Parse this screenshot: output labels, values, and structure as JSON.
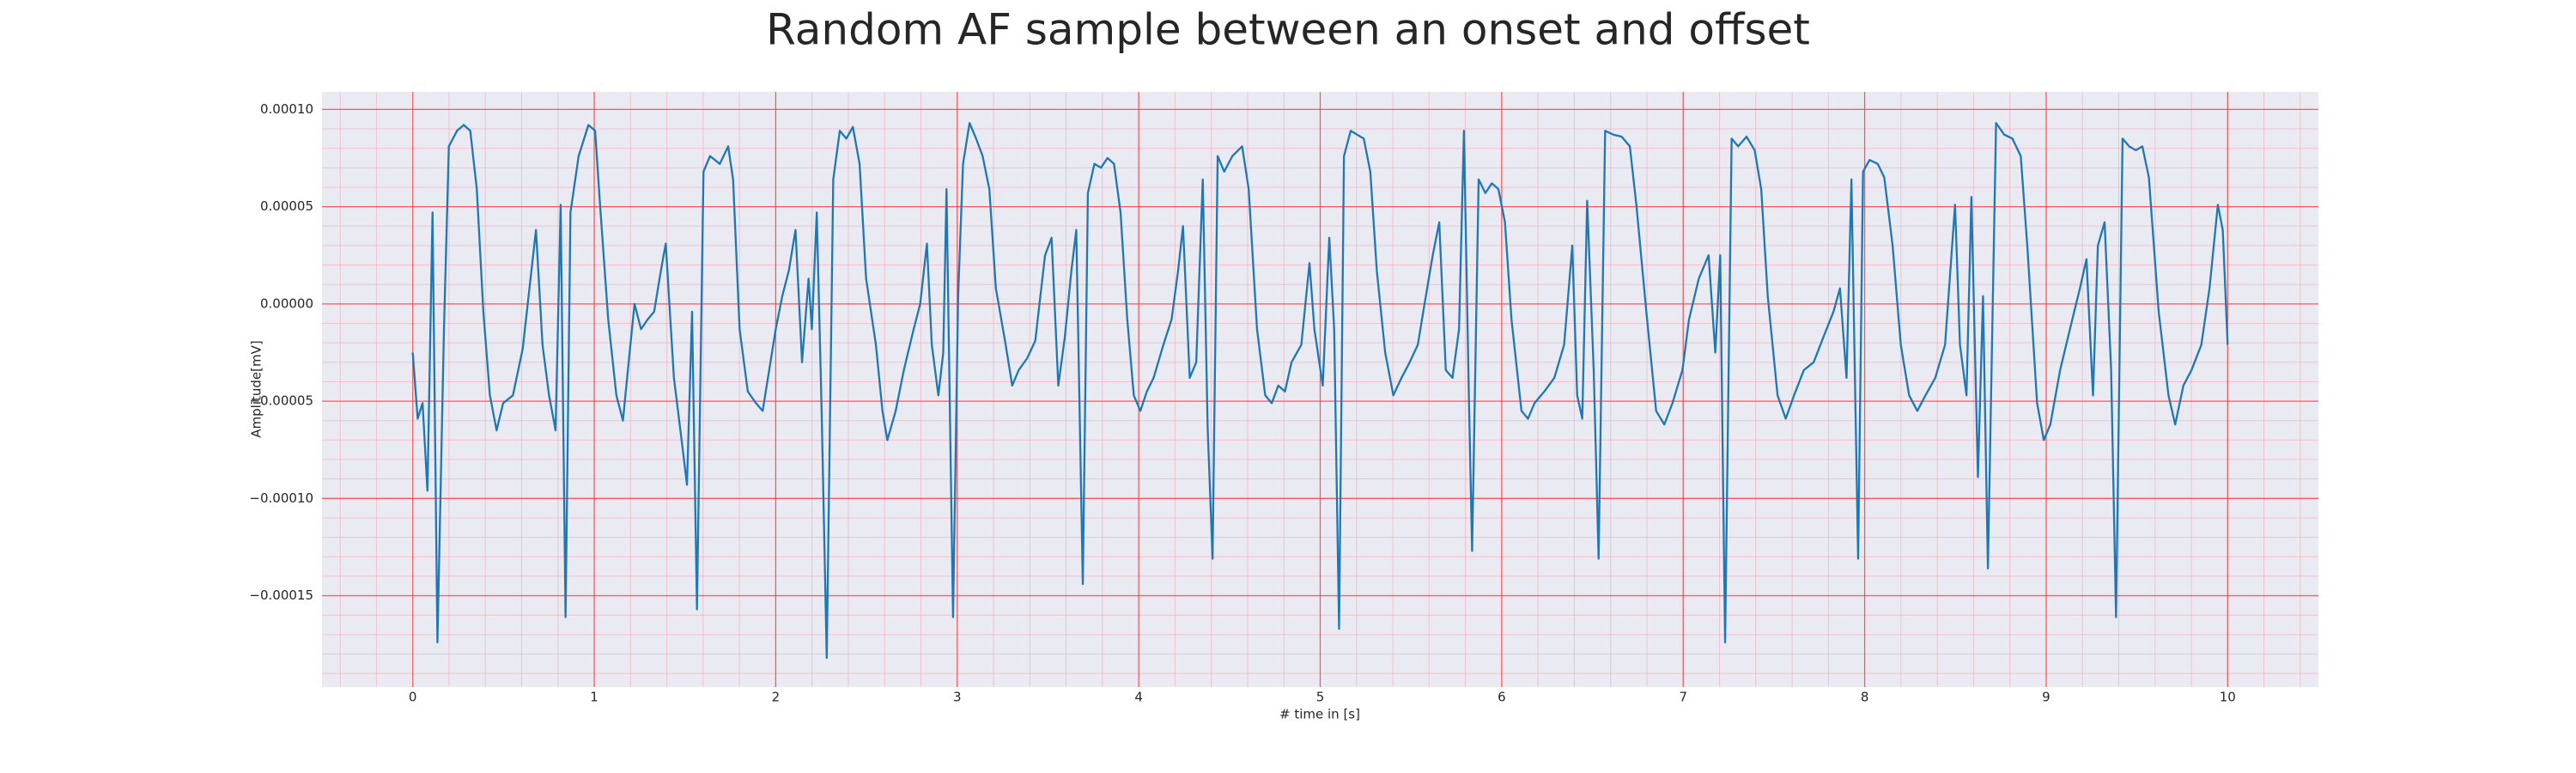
{
  "chart_data": {
    "type": "line",
    "title": "Random AF sample between an onset and offset",
    "xlabel": "# time in [s]",
    "ylabel": "Amplitude[mV]",
    "grid": true,
    "xlim": [
      -0.5,
      10.5
    ],
    "ylim": [
      -0.000197,
      0.000109
    ],
    "xticks": [
      0,
      1,
      2,
      3,
      4,
      5,
      6,
      7,
      8,
      9,
      10
    ],
    "yticks": [
      {
        "value": -0.00015,
        "label": "−0.00015"
      },
      {
        "value": -0.0001,
        "label": "−0.00010"
      },
      {
        "value": -5e-05,
        "label": "−0.00005"
      },
      {
        "value": 0,
        "label": "0.00000"
      },
      {
        "value": 5e-05,
        "label": "0.00005"
      },
      {
        "value": 0.0001,
        "label": "0.00010"
      }
    ],
    "series": [
      {
        "color": "#1f77b4",
        "x": [
          0,
          0.027,
          0.054,
          0.081,
          0.109,
          0.136,
          0.172,
          0.199,
          0.244,
          0.281,
          0.317,
          0.353,
          0.389,
          0.425,
          0.462,
          0.498,
          0.552,
          0.606,
          0.643,
          0.679,
          0.715,
          0.751,
          0.787,
          0.815,
          0.842,
          0.869,
          0.914,
          0.968,
          1.005,
          1.032,
          1.077,
          1.122,
          1.158,
          1.195,
          1.222,
          1.258,
          1.294,
          1.33,
          1.367,
          1.394,
          1.439,
          1.484,
          1.511,
          1.539,
          1.566,
          1.602,
          1.638,
          1.692,
          1.738,
          1.765,
          1.801,
          1.846,
          1.891,
          1.928,
          1.964,
          2.0,
          2.036,
          2.072,
          2.109,
          2.145,
          2.181,
          2.199,
          2.226,
          2.253,
          2.281,
          2.317,
          2.353,
          2.389,
          2.425,
          2.462,
          2.498,
          2.552,
          2.588,
          2.615,
          2.661,
          2.706,
          2.76,
          2.796,
          2.833,
          2.86,
          2.896,
          2.923,
          2.941,
          2.977,
          3.005,
          3.032,
          3.068,
          3.104,
          3.14,
          3.177,
          3.213,
          3.267,
          3.303,
          3.339,
          3.385,
          3.43,
          3.484,
          3.52,
          3.557,
          3.593,
          3.629,
          3.656,
          3.692,
          3.72,
          3.756,
          3.792,
          3.828,
          3.864,
          3.9,
          3.937,
          3.973,
          4.009,
          4.045,
          4.082,
          4.136,
          4.181,
          4.217,
          4.244,
          4.281,
          4.317,
          4.353,
          4.38,
          4.407,
          4.435,
          4.471,
          4.516,
          4.57,
          4.606,
          4.652,
          4.697,
          4.733,
          4.769,
          4.806,
          4.842,
          4.896,
          4.941,
          4.968,
          5.014,
          5.05,
          5.077,
          5.104,
          5.131,
          5.168,
          5.204,
          5.24,
          5.276,
          5.312,
          5.358,
          5.403,
          5.448,
          5.493,
          5.538,
          5.575,
          5.62,
          5.656,
          5.692,
          5.729,
          5.765,
          5.792,
          5.819,
          5.837,
          5.873,
          5.91,
          5.946,
          5.982,
          6.018,
          6.054,
          6.109,
          6.145,
          6.181,
          6.235,
          6.29,
          6.344,
          6.389,
          6.416,
          6.444,
          6.471,
          6.507,
          6.534,
          6.57,
          6.616,
          6.661,
          6.706,
          6.742,
          6.797,
          6.851,
          6.896,
          6.941,
          6.996,
          7.032,
          7.086,
          7.14,
          7.177,
          7.204,
          7.231,
          7.267,
          7.303,
          7.349,
          7.394,
          7.43,
          7.466,
          7.52,
          7.565,
          7.611,
          7.665,
          7.719,
          7.773,
          7.828,
          7.864,
          7.9,
          7.927,
          7.964,
          7.991,
          8.027,
          8.072,
          8.108,
          8.154,
          8.199,
          8.245,
          8.29,
          8.335,
          8.389,
          8.443,
          8.498,
          8.525,
          8.561,
          8.588,
          8.624,
          8.652,
          8.679,
          8.724,
          8.769,
          8.814,
          8.86,
          8.896,
          8.95,
          8.987,
          9.023,
          9.077,
          9.131,
          9.186,
          9.222,
          9.258,
          9.285,
          9.322,
          9.358,
          9.385,
          9.421,
          9.457,
          9.494,
          9.53,
          9.566,
          9.62,
          9.674,
          9.711,
          9.756,
          9.801,
          9.855,
          9.9,
          9.946,
          9.973,
          10.0
        ],
        "values": [
          -2.5e-05,
          -5.9e-05,
          -5.1e-05,
          -9.6e-05,
          4.7e-05,
          -0.000174,
          -1.3e-05,
          8.1e-05,
          8.9e-05,
          9.2e-05,
          8.9e-05,
          5.9e-05,
          -4e-06,
          -4.7e-05,
          -6.5e-05,
          -5.1e-05,
          -4.7e-05,
          -2.3e-05,
          8e-06,
          3.8e-05,
          -2.1e-05,
          -4.7e-05,
          -6.5e-05,
          5.1e-05,
          -0.000161,
          4.7e-05,
          7.6e-05,
          9.2e-05,
          8.9e-05,
          5.1e-05,
          -8e-06,
          -4.7e-05,
          -6e-05,
          -2.5e-05,
          0,
          -1.3e-05,
          -8e-06,
          -4e-06,
          1.7e-05,
          3.1e-05,
          -3.8e-05,
          -7.2e-05,
          -9.3e-05,
          -4e-06,
          -0.000157,
          6.8e-05,
          7.6e-05,
          7.2e-05,
          8.1e-05,
          6.4e-05,
          -1.3e-05,
          -4.5e-05,
          -5.1e-05,
          -5.5e-05,
          -3.4e-05,
          -1.3e-05,
          4e-06,
          1.7e-05,
          3.8e-05,
          -3e-05,
          1.3e-05,
          -1.3e-05,
          4.7e-05,
          -5.5e-05,
          -0.000182,
          6.4e-05,
          8.9e-05,
          8.5e-05,
          9.1e-05,
          7.2e-05,
          1.3e-05,
          -2.1e-05,
          -5.5e-05,
          -7e-05,
          -5.5e-05,
          -3.4e-05,
          -1.3e-05,
          0,
          3.1e-05,
          -2.1e-05,
          -4.7e-05,
          -2.5e-05,
          5.9e-05,
          -0.000161,
          4e-06,
          7.2e-05,
          9.3e-05,
          8.5e-05,
          7.6e-05,
          5.9e-05,
          8e-06,
          -2.1e-05,
          -4.2e-05,
          -3.4e-05,
          -2.8e-05,
          -1.9e-05,
          2.5e-05,
          3.4e-05,
          -4.2e-05,
          -1.7e-05,
          1.7e-05,
          3.8e-05,
          -0.000144,
          5.7e-05,
          7.2e-05,
          7e-05,
          7.5e-05,
          7.2e-05,
          4.7e-05,
          -8e-06,
          -4.7e-05,
          -5.5e-05,
          -4.5e-05,
          -3.8e-05,
          -2.1e-05,
          -8e-06,
          1.7e-05,
          4e-05,
          -3.8e-05,
          -3e-05,
          6.4e-05,
          -6.4e-05,
          -0.000131,
          7.6e-05,
          6.8e-05,
          7.6e-05,
          8.1e-05,
          5.9e-05,
          -1.3e-05,
          -4.7e-05,
          -5.1e-05,
          -4.2e-05,
          -4.5e-05,
          -3e-05,
          -2.1e-05,
          2.1e-05,
          -1.3e-05,
          -4.2e-05,
          3.4e-05,
          -1.3e-05,
          -0.000167,
          7.6e-05,
          8.9e-05,
          8.7e-05,
          8.5e-05,
          6.8e-05,
          1.7e-05,
          -2.5e-05,
          -4.7e-05,
          -3.8e-05,
          -3e-05,
          -2.1e-05,
          0,
          2.5e-05,
          4.2e-05,
          -3.4e-05,
          -3.8e-05,
          -1.3e-05,
          8.9e-05,
          -4.7e-05,
          -0.000127,
          6.4e-05,
          5.7e-05,
          6.2e-05,
          5.9e-05,
          4.2e-05,
          -8e-06,
          -5.5e-05,
          -5.9e-05,
          -5.1e-05,
          -4.5e-05,
          -3.8e-05,
          -2.1e-05,
          3e-05,
          -4.7e-05,
          -5.9e-05,
          5.3e-05,
          -3.4e-05,
          -0.000131,
          8.9e-05,
          8.7e-05,
          8.6e-05,
          8.1e-05,
          5.1e-05,
          -4e-06,
          -5.5e-05,
          -6.2e-05,
          -5.1e-05,
          -3.4e-05,
          -8e-06,
          1.3e-05,
          2.5e-05,
          -2.5e-05,
          2.5e-05,
          -0.000174,
          8.5e-05,
          8.1e-05,
          8.6e-05,
          7.9e-05,
          5.9e-05,
          4e-06,
          -4.7e-05,
          -5.9e-05,
          -4.7e-05,
          -3.4e-05,
          -3e-05,
          -1.7e-05,
          -4e-06,
          8e-06,
          -3.8e-05,
          6.4e-05,
          -0.000131,
          6.8e-05,
          7.4e-05,
          7.2e-05,
          6.5e-05,
          3e-05,
          -2.1e-05,
          -4.7e-05,
          -5.5e-05,
          -4.7e-05,
          -3.8e-05,
          -2.1e-05,
          5.1e-05,
          -2.1e-05,
          -4.7e-05,
          5.5e-05,
          -8.9e-05,
          4e-06,
          -0.000136,
          9.3e-05,
          8.7e-05,
          8.5e-05,
          7.6e-05,
          3e-05,
          -5.1e-05,
          -7e-05,
          -6.2e-05,
          -3.4e-05,
          -1.3e-05,
          8e-06,
          2.3e-05,
          -4.7e-05,
          3e-05,
          4.2e-05,
          -3.4e-05,
          -0.000161,
          8.5e-05,
          8.1e-05,
          7.9e-05,
          8.1e-05,
          6.5e-05,
          -4e-06,
          -4.7e-05,
          -6.2e-05,
          -4.2e-05,
          -3.4e-05,
          -2.1e-05,
          8e-06,
          5.1e-05,
          3.8e-05,
          -2.1e-05
        ]
      }
    ]
  }
}
